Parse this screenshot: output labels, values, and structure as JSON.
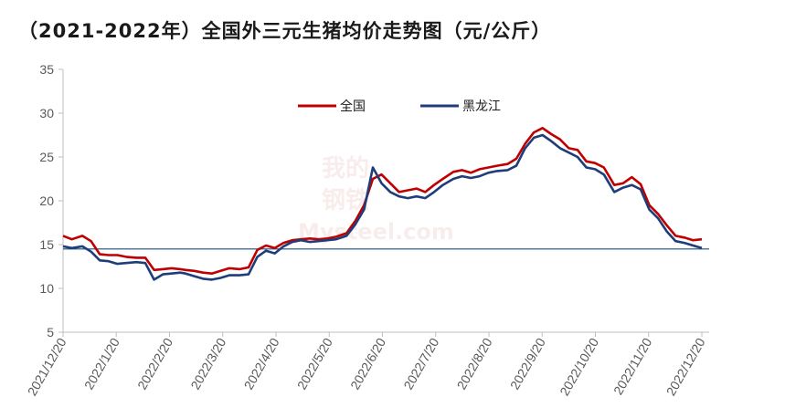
{
  "chart_data": {
    "type": "line",
    "title": "（2021-2022年）全国外三元生猪均价走势图（元/公斤）",
    "xlabel": "",
    "ylabel": "",
    "ylim": [
      5,
      35
    ],
    "yticks": [
      5,
      10,
      15,
      20,
      25,
      30,
      35
    ],
    "x_tick_labels": [
      "2021/12/20",
      "2022/1/20",
      "2022/2/20",
      "2022/3/20",
      "2022/4/20",
      "2022/5/20",
      "2022/6/20",
      "2022/7/20",
      "2022/8/20",
      "2022/9/20",
      "2022/10/20",
      "2022/11/20",
      "2022/12/20"
    ],
    "grid": false,
    "legend_position": "top",
    "reference_line": {
      "y": 14.5,
      "color": "#1f4e79"
    },
    "watermark": [
      "我的",
      "钢铁",
      "Mysteel.com"
    ],
    "series": [
      {
        "name": "全国",
        "color": "#c00000",
        "x": [
          "2021-12-20",
          "2021-12-25",
          "2021-12-31",
          "2022-01-05",
          "2022-01-10",
          "2022-01-15",
          "2022-01-20",
          "2022-01-25",
          "2022-01-31",
          "2022-02-05",
          "2022-02-10",
          "2022-02-15",
          "2022-02-20",
          "2022-02-25",
          "2022-02-28",
          "2022-03-05",
          "2022-03-10",
          "2022-03-15",
          "2022-03-20",
          "2022-03-25",
          "2022-03-31",
          "2022-04-05",
          "2022-04-10",
          "2022-04-15",
          "2022-04-20",
          "2022-04-25",
          "2022-04-30",
          "2022-05-05",
          "2022-05-10",
          "2022-05-15",
          "2022-05-20",
          "2022-05-25",
          "2022-05-31",
          "2022-06-05",
          "2022-06-10",
          "2022-06-15",
          "2022-06-20",
          "2022-06-25",
          "2022-06-30",
          "2022-07-05",
          "2022-07-10",
          "2022-07-15",
          "2022-07-20",
          "2022-07-25",
          "2022-07-31",
          "2022-08-05",
          "2022-08-10",
          "2022-08-15",
          "2022-08-20",
          "2022-08-25",
          "2022-08-31",
          "2022-09-05",
          "2022-09-10",
          "2022-09-15",
          "2022-09-20",
          "2022-09-25",
          "2022-09-30",
          "2022-10-05",
          "2022-10-10",
          "2022-10-15",
          "2022-10-20",
          "2022-10-25",
          "2022-10-31",
          "2022-11-05",
          "2022-11-10",
          "2022-11-15",
          "2022-11-20",
          "2022-11-25",
          "2022-11-30",
          "2022-12-05",
          "2022-12-10",
          "2022-12-15",
          "2022-12-20"
        ],
        "values": [
          16.0,
          15.6,
          16.0,
          15.4,
          13.9,
          13.8,
          13.8,
          13.6,
          13.5,
          13.5,
          12.1,
          12.2,
          12.3,
          12.2,
          12.1,
          12.0,
          11.8,
          11.7,
          12.0,
          12.3,
          12.2,
          12.4,
          14.4,
          14.9,
          14.6,
          15.2,
          15.5,
          15.6,
          15.7,
          15.6,
          15.7,
          15.9,
          16.3,
          17.7,
          19.5,
          22.5,
          23.0,
          22.0,
          21.0,
          21.2,
          21.4,
          21.0,
          21.8,
          22.5,
          23.3,
          23.5,
          23.2,
          23.6,
          23.8,
          24.0,
          24.2,
          24.8,
          26.5,
          27.8,
          28.3,
          27.6,
          27.0,
          26.0,
          25.8,
          24.5,
          24.3,
          23.8,
          21.8,
          22.0,
          22.7,
          21.9,
          19.5,
          18.5,
          17.2,
          16.0,
          15.8,
          15.5,
          15.6
        ]
      },
      {
        "name": "黑龙江",
        "color": "#1f3d7a",
        "x": [
          "2021-12-20",
          "2021-12-25",
          "2021-12-31",
          "2022-01-05",
          "2022-01-10",
          "2022-01-15",
          "2022-01-20",
          "2022-01-25",
          "2022-01-31",
          "2022-02-05",
          "2022-02-10",
          "2022-02-15",
          "2022-02-20",
          "2022-02-25",
          "2022-02-28",
          "2022-03-05",
          "2022-03-10",
          "2022-03-15",
          "2022-03-20",
          "2022-03-25",
          "2022-03-31",
          "2022-04-05",
          "2022-04-10",
          "2022-04-15",
          "2022-04-20",
          "2022-04-25",
          "2022-04-30",
          "2022-05-05",
          "2022-05-10",
          "2022-05-15",
          "2022-05-20",
          "2022-05-25",
          "2022-05-31",
          "2022-06-05",
          "2022-06-10",
          "2022-06-15",
          "2022-06-20",
          "2022-06-25",
          "2022-06-30",
          "2022-07-05",
          "2022-07-10",
          "2022-07-15",
          "2022-07-20",
          "2022-07-25",
          "2022-07-31",
          "2022-08-05",
          "2022-08-10",
          "2022-08-15",
          "2022-08-20",
          "2022-08-25",
          "2022-08-31",
          "2022-09-05",
          "2022-09-10",
          "2022-09-15",
          "2022-09-20",
          "2022-09-25",
          "2022-09-30",
          "2022-10-05",
          "2022-10-10",
          "2022-10-15",
          "2022-10-20",
          "2022-10-25",
          "2022-10-31",
          "2022-11-05",
          "2022-11-10",
          "2022-11-15",
          "2022-11-20",
          "2022-11-25",
          "2022-11-30",
          "2022-12-05",
          "2022-12-10",
          "2022-12-15",
          "2022-12-20"
        ],
        "values": [
          14.8,
          14.6,
          14.8,
          14.2,
          13.2,
          13.1,
          12.8,
          12.9,
          13.0,
          12.9,
          11.0,
          11.6,
          11.7,
          11.8,
          11.7,
          11.4,
          11.1,
          11.0,
          11.2,
          11.5,
          11.5,
          11.6,
          13.6,
          14.3,
          14.0,
          14.8,
          15.3,
          15.5,
          15.3,
          15.4,
          15.5,
          15.6,
          16.0,
          17.3,
          19.0,
          23.8,
          22.0,
          21.0,
          20.5,
          20.3,
          20.5,
          20.3,
          21.0,
          21.8,
          22.5,
          22.8,
          22.6,
          22.8,
          23.2,
          23.4,
          23.5,
          24.0,
          26.0,
          27.2,
          27.5,
          26.8,
          26.0,
          25.5,
          25.0,
          23.8,
          23.6,
          23.0,
          21.0,
          21.5,
          21.8,
          21.3,
          19.0,
          18.0,
          16.5,
          15.4,
          15.2,
          14.9,
          14.6
        ]
      }
    ]
  }
}
